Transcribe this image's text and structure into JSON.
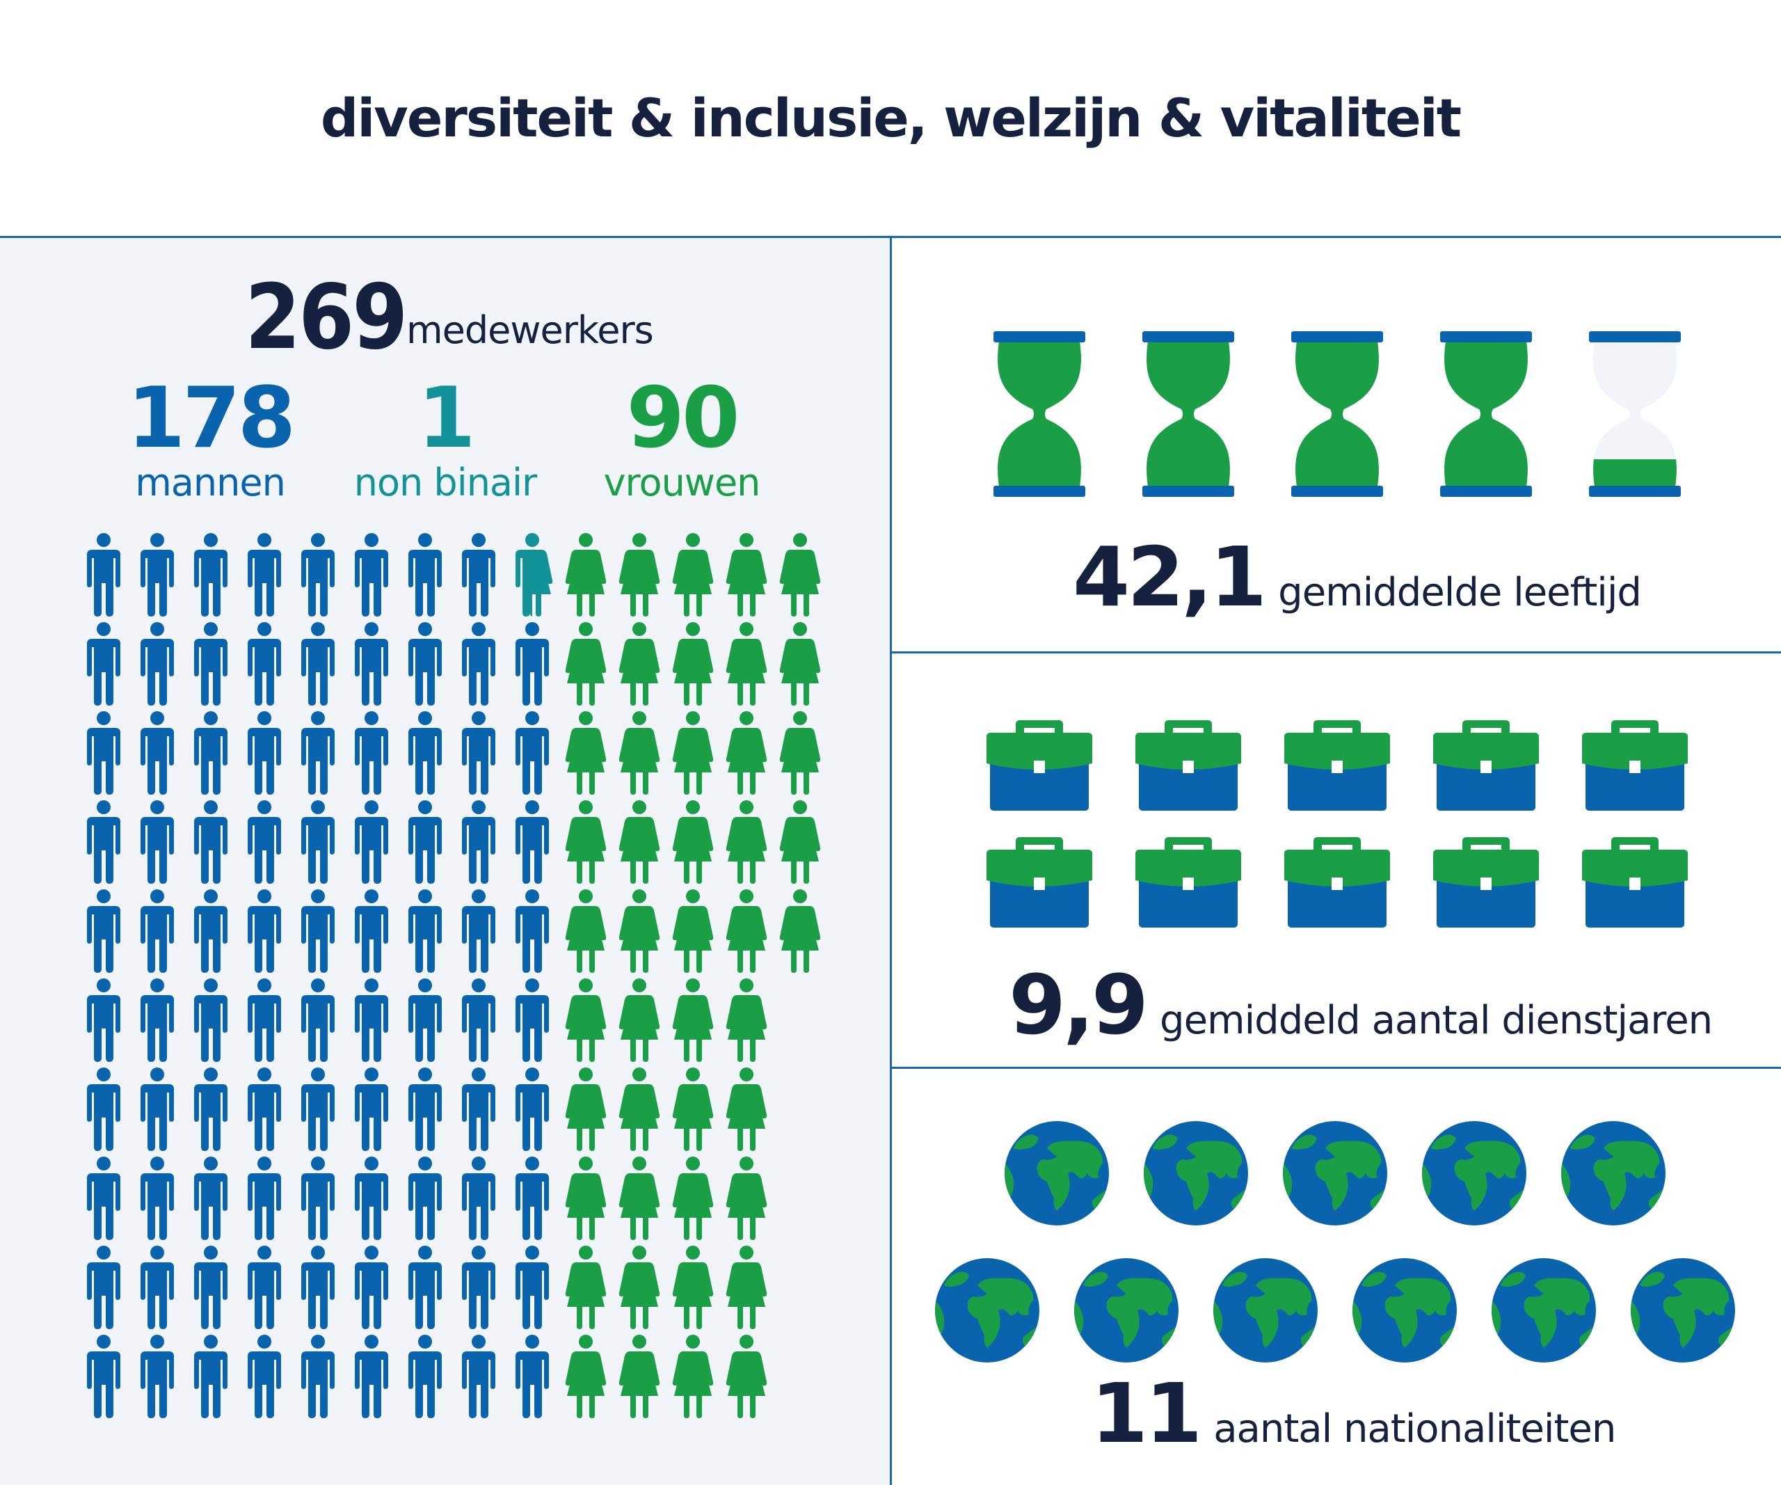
{
  "title": "diversiteit & inclusie, welzijn & vitaliteit",
  "colors": {
    "navy": "#16203f",
    "blue": "#0a64ad",
    "teal": "#13929a",
    "green": "#1a9e46",
    "panel_bg": "#f1f4f8",
    "divider": "#1966ad"
  },
  "workforce": {
    "total": "269",
    "total_label": "medewerkers",
    "groups": [
      {
        "value": "178",
        "label": "mannen",
        "color": "#0a64ad",
        "icon": "man-icon"
      },
      {
        "value": "1",
        "label": "non binair",
        "color": "#13929a",
        "icon": "non-binary-icon"
      },
      {
        "value": "90",
        "label": "vrouwen",
        "color": "#1a9e46",
        "icon": "woman-icon"
      }
    ],
    "pictogram_grid": {
      "rows": 10,
      "columns": 14,
      "row_layout": [
        [
          "man",
          "man",
          "man",
          "man",
          "man",
          "man",
          "man",
          "man",
          "nonbinary",
          "woman",
          "woman",
          "woman",
          "woman",
          "woman"
        ],
        [
          "man",
          "man",
          "man",
          "man",
          "man",
          "man",
          "man",
          "man",
          "man",
          "woman",
          "woman",
          "woman",
          "woman",
          "woman"
        ],
        [
          "man",
          "man",
          "man",
          "man",
          "man",
          "man",
          "man",
          "man",
          "man",
          "woman",
          "woman",
          "woman",
          "woman",
          "woman"
        ],
        [
          "man",
          "man",
          "man",
          "man",
          "man",
          "man",
          "man",
          "man",
          "man",
          "woman",
          "woman",
          "woman",
          "woman",
          "woman"
        ],
        [
          "man",
          "man",
          "man",
          "man",
          "man",
          "man",
          "man",
          "man",
          "man",
          "woman",
          "woman",
          "woman",
          "woman",
          "woman"
        ],
        [
          "man",
          "man",
          "man",
          "man",
          "man",
          "man",
          "man",
          "man",
          "man",
          "woman",
          "woman",
          "woman",
          "woman"
        ],
        [
          "man",
          "man",
          "man",
          "man",
          "man",
          "man",
          "man",
          "man",
          "man",
          "woman",
          "woman",
          "woman",
          "woman"
        ],
        [
          "man",
          "man",
          "man",
          "man",
          "man",
          "man",
          "man",
          "man",
          "man",
          "woman",
          "woman",
          "woman",
          "woman"
        ],
        [
          "man",
          "man",
          "man",
          "man",
          "man",
          "man",
          "man",
          "man",
          "man",
          "woman",
          "woman",
          "woman",
          "woman"
        ],
        [
          "man",
          "man",
          "man",
          "man",
          "man",
          "man",
          "man",
          "man",
          "man",
          "woman",
          "woman",
          "woman",
          "woman"
        ]
      ]
    }
  },
  "age": {
    "value": "42,1",
    "label": "gemiddelde leeftijd",
    "icon": "hourglass-icon",
    "hourglasses": [
      1,
      1,
      1,
      1,
      0.1
    ]
  },
  "service": {
    "value": "9,9",
    "label": "gemiddeld aantal dienstjaren",
    "icon": "briefcase-icon",
    "briefcase_rows": [
      5,
      5
    ]
  },
  "nationalities": {
    "value": "11",
    "label": "aantal nationaliteiten",
    "icon": "globe-icon",
    "globe_rows": [
      5,
      6
    ]
  }
}
